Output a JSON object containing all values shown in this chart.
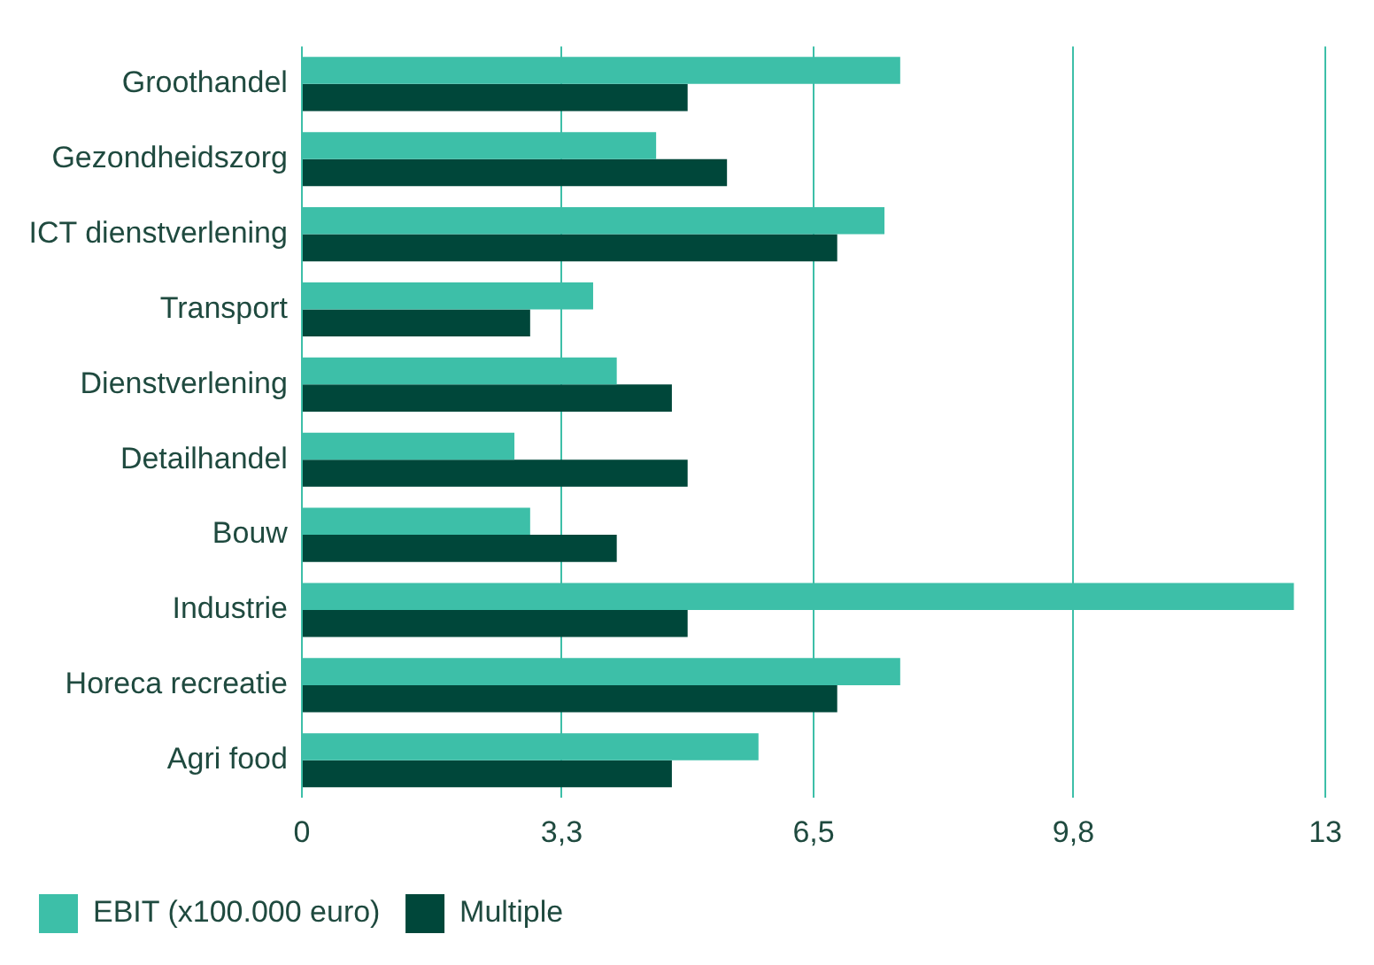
{
  "chart_data": {
    "type": "bar",
    "orientation": "horizontal",
    "categories": [
      "Groothandel",
      "Gezondheidszorg",
      "ICT dienstverlening",
      "Transport",
      "Dienstverlening",
      "Detailhandel",
      "Bouw",
      "Industrie",
      "Horeca recreatie",
      "Agri food"
    ],
    "series": [
      {
        "name": "EBIT (x100.000 euro)",
        "color": "#3dbfa8",
        "values": [
          7.6,
          4.5,
          7.4,
          3.7,
          4.0,
          2.7,
          2.9,
          12.6,
          7.6,
          5.8
        ]
      },
      {
        "name": "Multiple",
        "color": "#00473a",
        "values": [
          4.9,
          5.4,
          6.8,
          2.9,
          4.7,
          4.9,
          4.0,
          4.9,
          6.8,
          4.7
        ]
      }
    ],
    "xlim": [
      0,
      13
    ],
    "xticks": [
      0,
      {
        "value": 3.3,
        "label": "3,3"
      },
      {
        "value": 6.5,
        "label": "6,5"
      },
      {
        "value": 9.8,
        "label": "9,8"
      },
      13
    ],
    "grid": "x",
    "legend": "bottom left"
  }
}
